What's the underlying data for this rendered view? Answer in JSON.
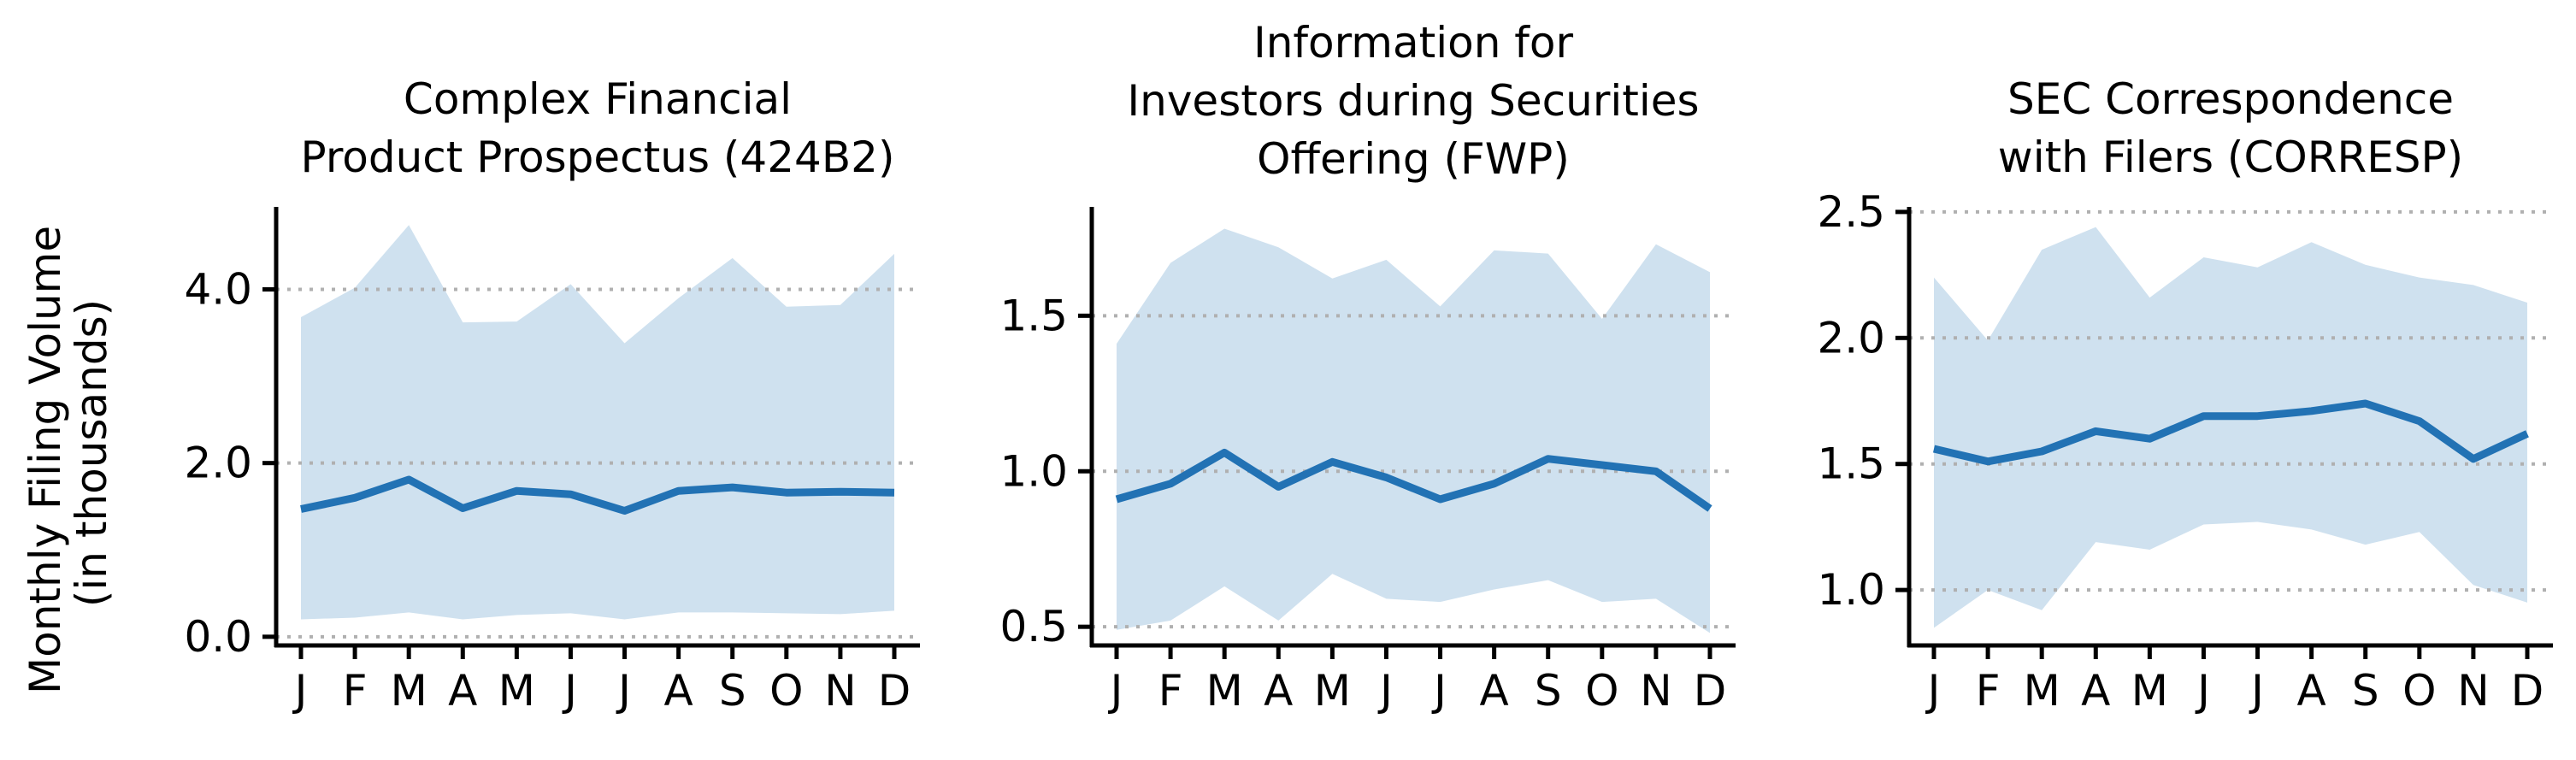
{
  "figure": {
    "ylabel_lines": [
      "Monthly Filing Volume",
      "(in thousands)"
    ]
  },
  "style": {
    "line_color": "#2272b4",
    "band_color": "#cfe1ef",
    "grid_color": "#b0b0b0"
  },
  "chart_data": [
    {
      "type": "line",
      "title_lines": [
        "Complex Financial",
        "Product Prospectus (424B2)"
      ],
      "categories": [
        "J",
        "F",
        "M",
        "A",
        "M",
        "J",
        "J",
        "A",
        "S",
        "O",
        "N",
        "D"
      ],
      "series": [
        {
          "values": [
            1.47,
            1.6,
            1.81,
            1.48,
            1.68,
            1.64,
            1.45,
            1.68,
            1.72,
            1.66,
            1.67,
            1.66
          ]
        }
      ],
      "band_upper": [
        3.68,
        4.02,
        4.74,
        3.62,
        3.63,
        4.06,
        3.38,
        3.9,
        4.36,
        3.8,
        3.82,
        4.41
      ],
      "band_lower": [
        0.2,
        0.22,
        0.28,
        0.2,
        0.25,
        0.27,
        0.2,
        0.28,
        0.28,
        0.27,
        0.26,
        0.3
      ],
      "yticks": [
        0.0,
        2.0,
        4.0
      ],
      "ytick_labels": [
        "0.0",
        "2.0",
        "4.0"
      ],
      "gridlines": [
        0.0,
        2.0,
        4.0
      ],
      "ylim": [
        -0.1,
        4.95
      ],
      "grid": true
    },
    {
      "type": "line",
      "title_lines": [
        "Information for",
        "Investors during Securities",
        "Offering (FWP)"
      ],
      "categories": [
        "J",
        "F",
        "M",
        "A",
        "M",
        "J",
        "J",
        "A",
        "S",
        "O",
        "N",
        "D"
      ],
      "series": [
        {
          "values": [
            0.91,
            0.96,
            1.06,
            0.95,
            1.03,
            0.98,
            0.91,
            0.96,
            1.04,
            1.02,
            1.0,
            0.88
          ]
        }
      ],
      "band_upper": [
        1.41,
        1.67,
        1.78,
        1.72,
        1.62,
        1.68,
        1.53,
        1.71,
        1.7,
        1.49,
        1.73,
        1.64
      ],
      "band_lower": [
        0.49,
        0.52,
        0.63,
        0.52,
        0.67,
        0.59,
        0.58,
        0.62,
        0.65,
        0.58,
        0.59,
        0.48
      ],
      "yticks": [
        0.5,
        1.0,
        1.5
      ],
      "ytick_labels": [
        "0.5",
        "1.0",
        "1.5"
      ],
      "gridlines": [
        0.5,
        1.0,
        1.5
      ],
      "ylim": [
        0.44,
        1.85
      ],
      "grid": true
    },
    {
      "type": "line",
      "title_lines": [
        "SEC Correspondence",
        "with Filers (CORRESP)"
      ],
      "categories": [
        "J",
        "F",
        "M",
        "A",
        "M",
        "J",
        "J",
        "A",
        "S",
        "O",
        "N",
        "D"
      ],
      "series": [
        {
          "values": [
            1.56,
            1.51,
            1.55,
            1.63,
            1.6,
            1.69,
            1.69,
            1.71,
            1.74,
            1.67,
            1.52,
            1.62
          ]
        }
      ],
      "band_upper": [
        2.24,
        1.99,
        2.35,
        2.44,
        2.16,
        2.32,
        2.28,
        2.38,
        2.29,
        2.24,
        2.21,
        2.14
      ],
      "band_lower": [
        0.85,
        1.0,
        0.92,
        1.19,
        1.16,
        1.26,
        1.27,
        1.24,
        1.18,
        1.23,
        1.02,
        0.95
      ],
      "yticks": [
        1.0,
        1.5,
        2.0,
        2.5
      ],
      "ytick_labels": [
        "1.0",
        "1.5",
        "2.0",
        "2.5"
      ],
      "gridlines": [
        1.0,
        1.5,
        2.0,
        2.5
      ],
      "ylim": [
        0.78,
        2.52
      ],
      "grid": true
    }
  ]
}
